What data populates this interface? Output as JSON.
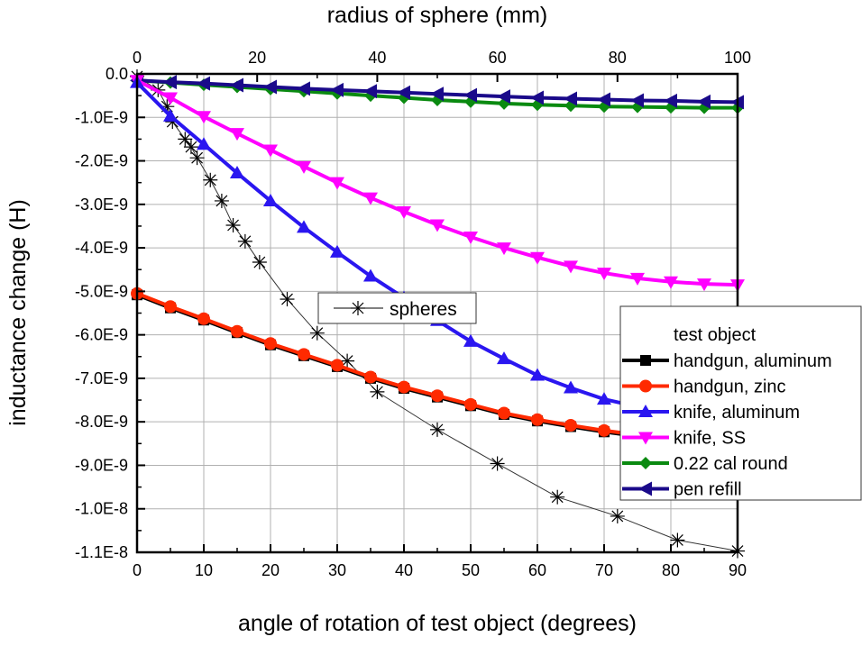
{
  "chart_data": {
    "type": "line",
    "xlabel": "angle of rotation of test object (degrees)",
    "x2label": "radius of sphere (mm)",
    "ylabel": "inductance change (H)",
    "xlim": [
      0,
      90
    ],
    "x2lim": [
      0,
      100
    ],
    "ylim": [
      -1.1e-08,
      0
    ],
    "xticks": [
      "0",
      "10",
      "20",
      "30",
      "40",
      "50",
      "60",
      "70",
      "80",
      "90"
    ],
    "x2ticks": [
      "0",
      "20",
      "40",
      "60",
      "80",
      "100"
    ],
    "yticks": [
      "0.0",
      "-1.0E-9",
      "-2.0E-9",
      "-3.0E-9",
      "-4.0E-9",
      "-5.0E-9",
      "-6.0E-9",
      "-7.0E-9",
      "-8.0E-9",
      "-9.0E-9",
      "-1.0E-8",
      "-1.1E-8"
    ],
    "grid": true,
    "legend_title": "test object",
    "legend_position": "right",
    "x": [
      0,
      5,
      10,
      15,
      20,
      25,
      30,
      35,
      40,
      45,
      50,
      55,
      60,
      65,
      70,
      75,
      80,
      85,
      90
    ],
    "series": [
      {
        "name": "handgun, aluminum",
        "color": "#000000",
        "marker": "square",
        "values": [
          -5.08e-09,
          -5.38e-09,
          -5.66e-09,
          -5.95e-09,
          -6.23e-09,
          -6.48e-09,
          -6.73e-09,
          -7e-09,
          -7.23e-09,
          -7.43e-09,
          -7.63e-09,
          -7.83e-09,
          -7.98e-09,
          -8.11e-09,
          -8.23e-09,
          -8.33e-09,
          -8.41e-09,
          -8.48e-09,
          -8.53e-09
        ]
      },
      {
        "name": "handgun, zinc",
        "color": "#ff2a00",
        "marker": "circle",
        "values": [
          -5.05e-09,
          -5.35e-09,
          -5.63e-09,
          -5.92e-09,
          -6.2e-09,
          -6.45e-09,
          -6.7e-09,
          -6.97e-09,
          -7.2e-09,
          -7.4e-09,
          -7.6e-09,
          -7.8e-09,
          -7.95e-09,
          -8.08e-09,
          -8.2e-09,
          -8.3e-09,
          -8.38e-09,
          -8.45e-09,
          -8.5e-09
        ]
      },
      {
        "name": "knife, aluminum",
        "color": "#2a16f0",
        "marker": "triangle-up",
        "values": [
          -2e-10,
          -9.7e-10,
          -1.62e-09,
          -2.28e-09,
          -2.92e-09,
          -3.53e-09,
          -4.1e-09,
          -4.65e-09,
          -5.15e-09,
          -5.67e-09,
          -6.15e-09,
          -6.55e-09,
          -6.93e-09,
          -7.22e-09,
          -7.48e-09,
          -7.65e-09,
          -7.78e-09,
          -7.85e-09,
          -7.9e-09
        ]
      },
      {
        "name": "knife, SS",
        "color": "#ff00ff",
        "marker": "triangle-down",
        "values": [
          -1.5e-10,
          -5.5e-10,
          -9.8e-10,
          -1.37e-09,
          -1.75e-09,
          -2.13e-09,
          -2.5e-09,
          -2.85e-09,
          -3.17e-09,
          -3.47e-09,
          -3.75e-09,
          -4e-09,
          -4.22e-09,
          -4.42e-09,
          -4.58e-09,
          -4.7e-09,
          -4.78e-09,
          -4.83e-09,
          -4.85e-09
        ]
      },
      {
        "name": "0.22 cal round",
        "color": "#0a8a10",
        "marker": "diamond",
        "values": [
          -1.5e-10,
          -2e-10,
          -2.5e-10,
          -3e-10,
          -3.5e-10,
          -4e-10,
          -4.5e-10,
          -5e-10,
          -5.5e-10,
          -6e-10,
          -6.4e-10,
          -6.8e-10,
          -7.1e-10,
          -7.3e-10,
          -7.5e-10,
          -7.6e-10,
          -7.7e-10,
          -7.8e-10,
          -7.8e-10
        ]
      },
      {
        "name": "pen refill",
        "color": "#1a0a8a",
        "marker": "triangle-left",
        "values": [
          -1.5e-10,
          -1.9e-10,
          -2.2e-10,
          -2.6e-10,
          -3e-10,
          -3.4e-10,
          -3.7e-10,
          -4e-10,
          -4.3e-10,
          -4.6e-10,
          -4.9e-10,
          -5.2e-10,
          -5.5e-10,
          -5.7e-10,
          -5.9e-10,
          -6.1e-10,
          -6.2e-10,
          -6.4e-10,
          -6.5e-10
        ]
      }
    ],
    "spheres": {
      "name": "spheres",
      "axis": "top",
      "color": "#000000",
      "marker": "asterisk",
      "x": [
        0,
        3.5,
        5,
        5.9,
        8,
        9,
        10,
        12.2,
        14.1,
        16,
        18,
        20.4,
        25,
        30,
        35,
        40,
        50,
        60,
        70,
        80,
        90,
        100
      ],
      "values": [
        -6e-11,
        -3.7e-10,
        -7.5e-10,
        -1.1e-09,
        -1.5e-09,
        -1.68e-09,
        -1.93e-09,
        -2.44e-09,
        -2.92e-09,
        -3.48e-09,
        -3.85e-09,
        -4.33e-09,
        -5.18e-09,
        -5.96e-09,
        -6.6e-09,
        -7.31e-09,
        -8.18e-09,
        -8.96e-09,
        -9.73e-09,
        -1.017e-08,
        -1.072e-08,
        -1.097e-08
      ]
    }
  }
}
